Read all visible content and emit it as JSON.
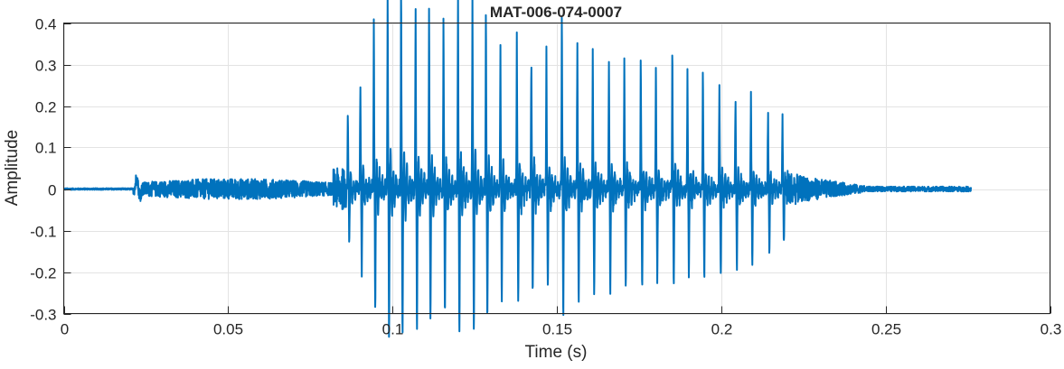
{
  "chart_data": {
    "type": "line",
    "title": "MAT-006-074-0007",
    "xlabel": "Time (s)",
    "ylabel": "Amplitude",
    "xlim": [
      0,
      0.3
    ],
    "ylim": [
      -0.3,
      0.4
    ],
    "xticks": [
      0,
      0.05,
      0.1,
      0.15,
      0.2,
      0.25,
      0.3
    ],
    "xtick_labels": [
      "0",
      "0.05",
      "0.1",
      "0.15",
      "0.2",
      "0.25",
      "0.3"
    ],
    "yticks": [
      -0.3,
      -0.2,
      -0.1,
      0,
      0.1,
      0.2,
      0.3,
      0.4
    ],
    "ytick_labels": [
      "-0.3",
      "-0.2",
      "-0.1",
      "0",
      "0.1",
      "0.2",
      "0.3",
      "0.4"
    ],
    "grid": true,
    "series_color": "#0072BD",
    "signal_end": 0.276,
    "noise_segment": {
      "start": 0.021,
      "end": 0.082,
      "amplitude": 0.025
    },
    "pulses": [
      {
        "t": 0.0864,
        "amp": 0.13
      },
      {
        "t": 0.0902,
        "amp": 0.2
      },
      {
        "t": 0.0943,
        "amp": 0.29
      },
      {
        "t": 0.0985,
        "amp": 0.35
      },
      {
        "t": 0.1026,
        "amp": 0.35
      },
      {
        "t": 0.107,
        "amp": 0.32
      },
      {
        "t": 0.1111,
        "amp": 0.31
      },
      {
        "t": 0.1155,
        "amp": 0.28
      },
      {
        "t": 0.1199,
        "amp": 0.34
      },
      {
        "t": 0.1243,
        "amp": 0.33
      },
      {
        "t": 0.1284,
        "amp": 0.31
      },
      {
        "t": 0.1328,
        "amp": 0.25
      },
      {
        "t": 0.1378,
        "amp": 0.27
      },
      {
        "t": 0.1422,
        "amp": 0.25
      },
      {
        "t": 0.1468,
        "amp": 0.24
      },
      {
        "t": 0.1515,
        "amp": 0.31
      },
      {
        "t": 0.1562,
        "amp": 0.28
      },
      {
        "t": 0.1609,
        "amp": 0.25
      },
      {
        "t": 0.1658,
        "amp": 0.24
      },
      {
        "t": 0.1705,
        "amp": 0.24
      },
      {
        "t": 0.1755,
        "amp": 0.23
      },
      {
        "t": 0.1801,
        "amp": 0.22
      },
      {
        "t": 0.1851,
        "amp": 0.24
      },
      {
        "t": 0.1897,
        "amp": 0.21
      },
      {
        "t": 0.1944,
        "amp": 0.21
      },
      {
        "t": 0.1994,
        "amp": 0.2
      },
      {
        "t": 0.2043,
        "amp": 0.19
      },
      {
        "t": 0.209,
        "amp": 0.18
      },
      {
        "t": 0.2142,
        "amp": 0.15
      },
      {
        "t": 0.2186,
        "amp": 0.13
      }
    ]
  }
}
